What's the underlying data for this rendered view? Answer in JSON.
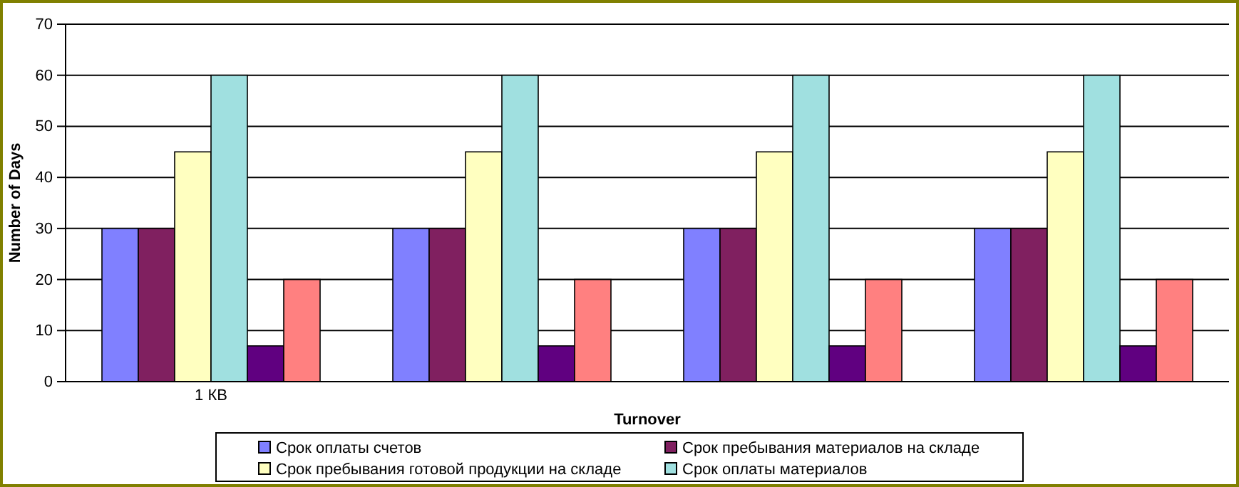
{
  "chart_data": {
    "type": "bar",
    "xlabel": "Turnover",
    "ylabel": "Number of Days",
    "categories": [
      "1 КВ",
      null,
      null,
      null
    ],
    "series": [
      {
        "name": "Срок оплаты счетов",
        "color": "#8080ff",
        "values": [
          30,
          30,
          30,
          30
        ]
      },
      {
        "name": "Срок пребывания материалов на складе",
        "color": "#802060",
        "values": [
          30,
          30,
          30,
          30
        ]
      },
      {
        "name": "Срок пребывания готовой продукции на складе",
        "color": "#ffffc0",
        "values": [
          45,
          45,
          45,
          45
        ]
      },
      {
        "name": "Срок оплаты материалов",
        "color": "#a0e0e0",
        "values": [
          60,
          60,
          60,
          60
        ]
      },
      {
        "color": "#600080",
        "values": [
          7,
          7,
          7,
          7
        ]
      },
      {
        "color": "#ff8080",
        "values": [
          20,
          20,
          20,
          20
        ]
      }
    ],
    "ylim": [
      0,
      70
    ],
    "yticks": [
      0,
      10,
      20,
      30,
      40,
      50,
      60,
      70
    ],
    "grid": "y",
    "legend": "bottom"
  }
}
